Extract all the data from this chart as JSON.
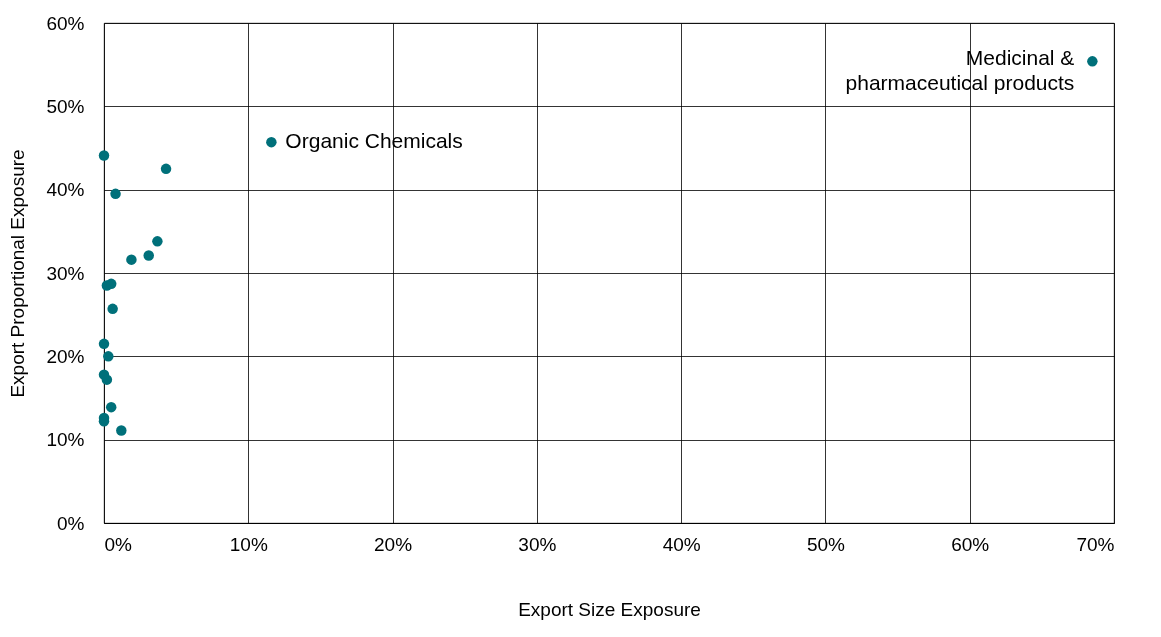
{
  "chart_data": {
    "type": "scatter",
    "xlabel": "Export Size Exposure",
    "ylabel": "Export Proportional Exposure",
    "x": [
      0.0,
      4.3,
      0.8,
      3.7,
      3.1,
      1.9,
      0.2,
      0.5,
      0.6,
      0.0,
      0.3,
      0.0,
      0.2,
      0.5,
      0.0,
      0.0,
      1.2,
      11.6,
      68.5
    ],
    "series": [
      {
        "color": "#00707a",
        "values": [
          44.1,
          42.5,
          39.5,
          33.8,
          32.1,
          31.6,
          28.5,
          28.7,
          25.7,
          21.5,
          20.0,
          17.8,
          17.2,
          13.9,
          12.6,
          12.2,
          11.1,
          45.7,
          55.4
        ]
      }
    ],
    "xlim": [
      0,
      70
    ],
    "ylim": [
      0,
      60
    ],
    "xticks": [
      {
        "value": 0,
        "label": "0%"
      },
      {
        "value": 10,
        "label": "10%"
      },
      {
        "value": 20,
        "label": "20%"
      },
      {
        "value": 30,
        "label": "30%"
      },
      {
        "value": 40,
        "label": "40%"
      },
      {
        "value": 50,
        "label": "50%"
      },
      {
        "value": 60,
        "label": "60%"
      },
      {
        "value": 70,
        "label": "70%"
      }
    ],
    "yticks": [
      {
        "value": 0,
        "label": "0%"
      },
      {
        "value": 10,
        "label": "10%"
      },
      {
        "value": 20,
        "label": "20%"
      },
      {
        "value": 30,
        "label": "30%"
      },
      {
        "value": 40,
        "label": "40%"
      },
      {
        "value": 50,
        "label": "50%"
      },
      {
        "value": 60,
        "label": "60%"
      }
    ],
    "grid": true,
    "marker": "circle",
    "annotations": [
      {
        "text": "Organic Chemicals",
        "x": 11.6,
        "y": 45.7
      },
      {
        "text": "Medicinal &\npharmaceutical products",
        "x": 68.5,
        "y": 55.4
      }
    ]
  }
}
